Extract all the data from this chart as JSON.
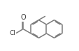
{
  "bg_color": "#ffffff",
  "bond_color": "#7a7a7a",
  "text_color": "#3a3a3a",
  "lw": 1.1,
  "figsize": [
    1.14,
    0.73
  ],
  "dpi": 100,
  "r": 0.155
}
